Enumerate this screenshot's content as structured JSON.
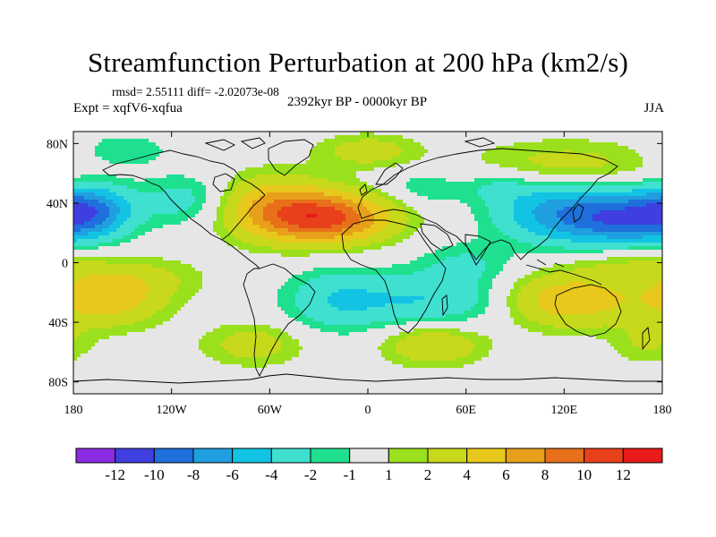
{
  "title": "Streamfunction Perturbation at 200 hPa (km2/s)",
  "stats_line": "rmsd= 2.55111 diff= -2.02073e-08",
  "left_label": "Expt = xqfV6-xqfua",
  "center_label": "2392kyr BP - 0000kyr BP",
  "right_label": "JJA",
  "axes": {
    "lat_ticks": [
      "80N",
      "40N",
      "0",
      "40S",
      "80S"
    ],
    "lat_values": [
      80,
      40,
      0,
      -40,
      -80
    ],
    "lon_ticks": [
      "180",
      "120W",
      "60W",
      "0",
      "60E",
      "120E",
      "180"
    ],
    "lon_values": [
      -180,
      -120,
      -60,
      0,
      60,
      120,
      180
    ]
  },
  "colorbar": {
    "labels": [
      "-12",
      "-10",
      "-8",
      "-6",
      "-4",
      "-2",
      "-1",
      "1",
      "2",
      "4",
      "6",
      "8",
      "10",
      "12"
    ],
    "colors": [
      "#8a2be2",
      "#3f3fe0",
      "#1f6fdc",
      "#1f9fdf",
      "#12c3e3",
      "#3fe0d0",
      "#1fe08f",
      "#e6e6e6",
      "#9ae01c",
      "#c8d81a",
      "#e8c81a",
      "#e8a01a",
      "#e8701a",
      "#e8401a",
      "#e81a1a"
    ]
  },
  "field": {
    "note": "centers of perturbation anomalies (lon, lat, amplitude, lon-spread, lat-spread)",
    "blobs": [
      {
        "lon": -25,
        "lat": 30,
        "amp": 10,
        "sx": 28,
        "sy": 12
      },
      {
        "lon": -60,
        "lat": 38,
        "amp": 5,
        "sx": 25,
        "sy": 15
      },
      {
        "lon": 155,
        "lat": 30,
        "amp": -9,
        "sx": 28,
        "sy": 13
      },
      {
        "lon": 110,
        "lat": 35,
        "amp": -5,
        "sx": 25,
        "sy": 15
      },
      {
        "lon": -170,
        "lat": 35,
        "amp": -7,
        "sx": 18,
        "sy": 12
      },
      {
        "lon": -110,
        "lat": 42,
        "amp": -3,
        "sx": 20,
        "sy": 12
      },
      {
        "lon": 120,
        "lat": -25,
        "amp": 6,
        "sx": 30,
        "sy": 13
      },
      {
        "lon": -160,
        "lat": -25,
        "amp": 5,
        "sx": 25,
        "sy": 13
      },
      {
        "lon": 40,
        "lat": -25,
        "amp": -4,
        "sx": 40,
        "sy": 13
      },
      {
        "lon": -20,
        "lat": -25,
        "amp": -3,
        "sx": 22,
        "sy": 15
      },
      {
        "lon": 40,
        "lat": -55,
        "amp": 4,
        "sx": 22,
        "sy": 10
      },
      {
        "lon": -70,
        "lat": -55,
        "amp": 3,
        "sx": 22,
        "sy": 10
      },
      {
        "lon": 120,
        "lat": 65,
        "amp": 3,
        "sx": 40,
        "sy": 12
      },
      {
        "lon": -150,
        "lat": 75,
        "amp": -2,
        "sx": 20,
        "sy": 8
      },
      {
        "lon": 0,
        "lat": 75,
        "amp": 3,
        "sx": 22,
        "sy": 8
      },
      {
        "lon": 35,
        "lat": 50,
        "amp": -2,
        "sx": 18,
        "sy": 8
      },
      {
        "lon": 80,
        "lat": 52,
        "amp": -2,
        "sx": 15,
        "sy": 8
      },
      {
        "lon": 60,
        "lat": 0,
        "amp": -2,
        "sx": 20,
        "sy": 10
      },
      {
        "lon": -140,
        "lat": -10,
        "amp": 2,
        "sx": 30,
        "sy": 10
      },
      {
        "lon": 170,
        "lat": -55,
        "amp": 2,
        "sx": 15,
        "sy": 10
      },
      {
        "lon": 160,
        "lat": 0,
        "amp": 2,
        "sx": 25,
        "sy": 8
      }
    ]
  }
}
